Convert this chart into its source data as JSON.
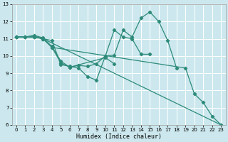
{
  "xlabel": "Humidex (Indice chaleur)",
  "background_color": "#cce8ee",
  "grid_color": "#ffffff",
  "line_color": "#2e8b7a",
  "xlim": [
    -0.5,
    23.5
  ],
  "ylim": [
    6,
    13
  ],
  "xticks": [
    0,
    1,
    2,
    3,
    4,
    5,
    6,
    7,
    8,
    9,
    10,
    11,
    12,
    13,
    14,
    15,
    16,
    17,
    18,
    19,
    20,
    21,
    22,
    23
  ],
  "yticks": [
    6,
    7,
    8,
    9,
    10,
    11,
    12,
    13
  ],
  "series": [
    {
      "x": [
        0,
        1,
        2,
        3,
        23
      ],
      "y": [
        11.1,
        11.1,
        11.1,
        11.0,
        6.0
      ]
    },
    {
      "x": [
        0,
        1,
        2,
        3,
        4,
        19,
        20,
        21,
        22,
        23
      ],
      "y": [
        11.1,
        11.1,
        11.1,
        11.0,
        10.5,
        9.3,
        7.8,
        7.3,
        6.5,
        6.0
      ]
    },
    {
      "x": [
        0,
        1,
        2,
        3,
        4,
        5,
        6,
        7,
        8,
        9,
        10,
        11,
        12,
        13,
        14,
        15,
        16,
        17,
        18
      ],
      "y": [
        11.1,
        11.1,
        11.2,
        11.05,
        10.55,
        9.7,
        9.35,
        9.45,
        9.4,
        9.55,
        10.0,
        10.05,
        11.5,
        11.1,
        12.2,
        12.55,
        12.0,
        10.9,
        9.3
      ]
    },
    {
      "x": [
        0,
        1,
        2,
        3,
        4,
        5,
        6,
        7,
        8,
        9,
        10,
        11,
        12,
        13,
        14,
        15
      ],
      "y": [
        11.1,
        11.1,
        11.15,
        11.0,
        10.9,
        9.5,
        9.4,
        9.3,
        8.8,
        8.6,
        10.0,
        11.5,
        11.1,
        11.0,
        10.1,
        10.1
      ]
    },
    {
      "x": [
        0,
        1,
        2,
        3,
        4,
        5,
        6,
        10,
        11
      ],
      "y": [
        11.1,
        11.1,
        11.1,
        11.0,
        10.5,
        9.6,
        9.35,
        9.9,
        9.55
      ]
    }
  ],
  "tick_labelsize": 5,
  "xlabel_fontsize": 6,
  "linewidth": 0.9,
  "markersize": 2.2
}
